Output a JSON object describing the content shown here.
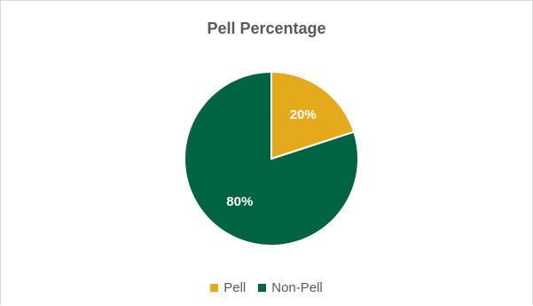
{
  "chart_data": {
    "type": "pie",
    "title": "Pell Percentage",
    "categories": [
      "Pell",
      "Non-Pell"
    ],
    "values": [
      20,
      80
    ],
    "data_labels": [
      "20%",
      "80%"
    ],
    "colors": [
      "#e5a91c",
      "#006341"
    ],
    "legend_position": "bottom"
  }
}
